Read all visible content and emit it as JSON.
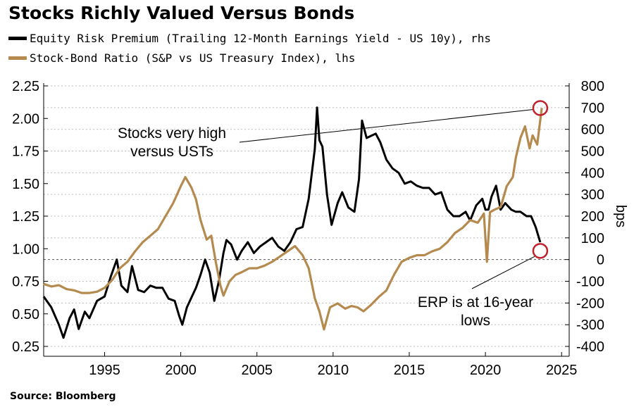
{
  "title": "Stocks Richly Valued Versus Bonds",
  "source": "Source: Bloomberg",
  "chart_data": {
    "type": "line",
    "legend_position": "top-left",
    "grid": true,
    "series": [
      {
        "name": "Equity Risk Premium (Trailing 12-Month Earnings Yield - US 10y), rhs",
        "axis": "right",
        "color": "#000000",
        "x": [
          1991.0,
          1991.5,
          1992.0,
          1992.3,
          1992.7,
          1993.0,
          1993.3,
          1993.7,
          1994.0,
          1994.5,
          1995.0,
          1995.4,
          1995.8,
          1996.1,
          1996.5,
          1996.8,
          1997.2,
          1997.6,
          1998.0,
          1998.4,
          1998.8,
          1999.2,
          1999.6,
          1999.9,
          2000.1,
          2000.4,
          2000.8,
          2001.0,
          2001.3,
          2001.6,
          2001.9,
          2002.2,
          2002.5,
          2002.8,
          2003.0,
          2003.3,
          2003.7,
          2004.0,
          2004.4,
          2004.8,
          2005.2,
          2005.6,
          2006.0,
          2006.4,
          2006.8,
          2007.2,
          2007.6,
          2008.0,
          2008.4,
          2008.8,
          2008.95,
          2009.1,
          2009.3,
          2009.6,
          2009.9,
          2010.3,
          2010.6,
          2011.0,
          2011.4,
          2011.7,
          2011.9,
          2012.2,
          2012.5,
          2012.8,
          2013.1,
          2013.5,
          2013.9,
          2014.3,
          2014.7,
          2015.1,
          2015.5,
          2015.9,
          2016.3,
          2016.7,
          2017.1,
          2017.5,
          2017.9,
          2018.3,
          2018.7,
          2019.0,
          2019.4,
          2019.8,
          2020.0,
          2020.2,
          2020.4,
          2020.7,
          2021.0,
          2021.3,
          2021.7,
          2022.0,
          2022.3,
          2022.7,
          2023.0,
          2023.3,
          2023.6
        ],
        "values": [
          -170,
          -220,
          -300,
          -360,
          -270,
          -230,
          -320,
          -240,
          -270,
          -190,
          -170,
          -80,
          0,
          -120,
          -150,
          -30,
          -140,
          -150,
          -120,
          -130,
          -130,
          -180,
          -190,
          -260,
          -300,
          -220,
          -160,
          -130,
          -70,
          0,
          -60,
          -190,
          -100,
          30,
          90,
          70,
          0,
          40,
          80,
          30,
          60,
          80,
          100,
          60,
          40,
          80,
          140,
          150,
          280,
          510,
          700,
          550,
          520,
          300,
          160,
          260,
          310,
          240,
          220,
          370,
          640,
          560,
          570,
          580,
          540,
          460,
          420,
          400,
          350,
          360,
          340,
          330,
          330,
          300,
          310,
          230,
          200,
          200,
          220,
          180,
          250,
          280,
          230,
          230,
          290,
          340,
          230,
          260,
          230,
          220,
          220,
          200,
          200,
          150,
          80
        ]
      },
      {
        "name": "Stock-Bond Ratio (S&P vs US Treasury Index), lhs",
        "axis": "left",
        "color": "#b58a4e",
        "x": [
          1991.0,
          1991.5,
          1992.0,
          1992.5,
          1993.0,
          1993.5,
          1994.0,
          1994.5,
          1995.0,
          1995.5,
          1996.0,
          1996.5,
          1997.0,
          1997.5,
          1998.0,
          1998.5,
          1999.0,
          1999.5,
          2000.0,
          2000.3,
          2000.7,
          2001.0,
          2001.3,
          2001.7,
          2002.0,
          2002.3,
          2002.6,
          2002.8,
          2003.2,
          2003.6,
          2004.0,
          2004.5,
          2005.0,
          2005.5,
          2006.0,
          2006.5,
          2007.0,
          2007.5,
          2008.0,
          2008.4,
          2008.8,
          2009.1,
          2009.4,
          2009.8,
          2010.3,
          2010.8,
          2011.2,
          2011.6,
          2012.0,
          2012.5,
          2013.0,
          2013.5,
          2014.0,
          2014.5,
          2015.0,
          2015.5,
          2016.0,
          2016.5,
          2017.0,
          2017.5,
          2018.0,
          2018.5,
          2019.0,
          2019.5,
          2019.9,
          2020.1,
          2020.3,
          2020.6,
          2021.0,
          2021.4,
          2021.8,
          2022.0,
          2022.3,
          2022.6,
          2022.9,
          2023.1,
          2023.4,
          2023.7
        ],
        "values": [
          0.73,
          0.71,
          0.72,
          0.69,
          0.68,
          0.66,
          0.66,
          0.67,
          0.7,
          0.76,
          0.85,
          0.9,
          0.98,
          1.05,
          1.1,
          1.15,
          1.25,
          1.35,
          1.48,
          1.55,
          1.47,
          1.38,
          1.22,
          1.07,
          1.1,
          0.9,
          0.72,
          0.64,
          0.75,
          0.8,
          0.82,
          0.85,
          0.85,
          0.87,
          0.9,
          0.94,
          0.98,
          1.02,
          0.95,
          0.85,
          0.62,
          0.52,
          0.38,
          0.55,
          0.58,
          0.54,
          0.56,
          0.55,
          0.52,
          0.57,
          0.63,
          0.68,
          0.8,
          0.9,
          0.93,
          0.95,
          0.95,
          0.98,
          1.0,
          1.05,
          1.12,
          1.16,
          1.22,
          1.2,
          1.27,
          0.9,
          1.28,
          1.3,
          1.32,
          1.48,
          1.55,
          1.7,
          1.85,
          1.94,
          1.77,
          1.87,
          1.8,
          2.08
        ]
      }
    ],
    "x_ticks": [
      1995,
      2000,
      2005,
      2010,
      2015,
      2020,
      2025
    ],
    "xlim": [
      1991,
      2025.5
    ],
    "left_axis": {
      "ylim": [
        0.25,
        2.25
      ],
      "ticks": [
        2.25,
        2.0,
        1.75,
        1.5,
        1.25,
        1.0,
        0.75,
        0.5,
        0.25
      ],
      "tick_labels": [
        "2.25",
        "2.00",
        "1.75",
        "1.50",
        "1.25",
        "1.00",
        "0.75",
        "0.50",
        "0.25"
      ]
    },
    "right_axis": {
      "ylim": [
        -400,
        800
      ],
      "ticks": [
        800,
        700,
        600,
        500,
        400,
        300,
        200,
        100,
        0,
        -100,
        -200,
        -300,
        -400
      ],
      "label": "bps"
    },
    "zero_line": 0,
    "annotations": [
      {
        "text_lines": [
          "Stocks very high",
          "versus USTs"
        ],
        "point": [
          2023.6,
          2.08
        ],
        "axis": "left"
      },
      {
        "text_lines": [
          "ERP is at 16-year",
          "lows"
        ],
        "point": [
          2023.6,
          40
        ],
        "axis": "right"
      }
    ]
  }
}
